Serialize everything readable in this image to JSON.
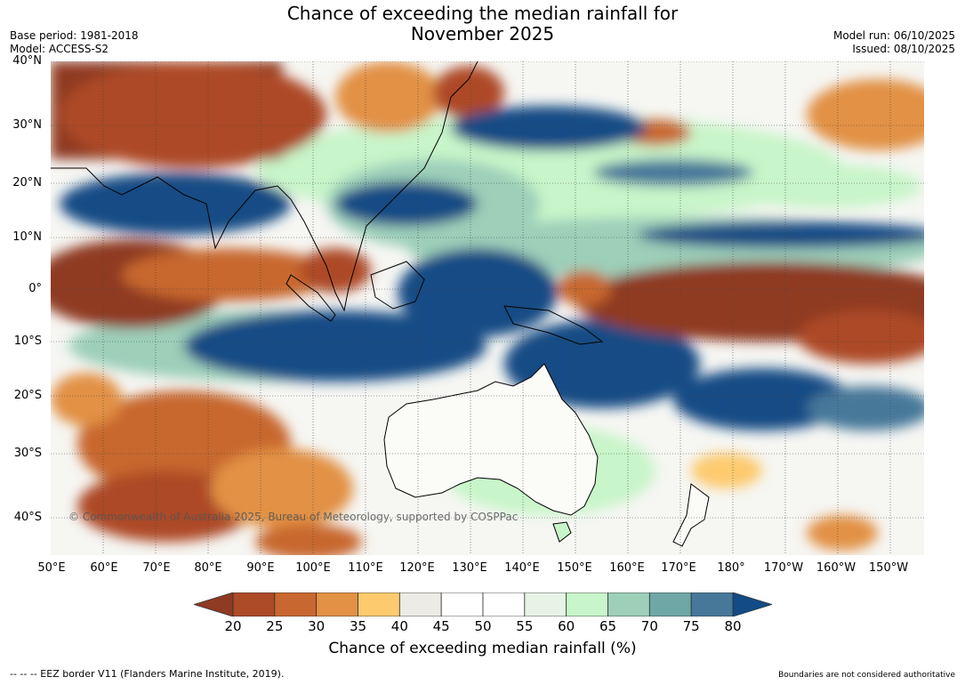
{
  "header": {
    "title_line1": "Chance of exceeding the median rainfall for",
    "title_line2": "November 2025",
    "base_period": "Base period: 1981-2018",
    "model": "Model: ACCESS-S2",
    "model_run": "Model run: 06/10/2025",
    "issued": "Issued: 08/10/2025"
  },
  "map": {
    "lat_labels": [
      "40°N",
      "30°N",
      "20°N",
      "10°N",
      "0°",
      "10°S",
      "20°S",
      "30°S",
      "40°S"
    ],
    "lon_labels": [
      "50°E",
      "60°E",
      "70°E",
      "80°E",
      "90°E",
      "100°E",
      "110°E",
      "120°E",
      "130°E",
      "140°E",
      "150°E",
      "160°E",
      "170°E",
      "180°",
      "170°W",
      "160°W",
      "150°W"
    ],
    "copyright": "© Commonwealth of Australia 2025, Bureau of Meteorology, supported by COSPPac"
  },
  "legend": {
    "ticks": [
      "20",
      "25",
      "30",
      "35",
      "40",
      "45",
      "50",
      "55",
      "60",
      "65",
      "70",
      "75",
      "80"
    ],
    "colors": [
      "#8f3a22",
      "#ad4a28",
      "#c8672f",
      "#e29145",
      "#fdca6e",
      "#ecebe5",
      "#ffffff",
      "#ffffff",
      "#e6f3e6",
      "#c8f5c9",
      "#9dcfb9",
      "#6fa7a6",
      "#47789a",
      "#124b85"
    ],
    "title": "Chance of exceeding median rainfall (%)"
  },
  "footer": {
    "eez_note": "--  --  -- EEZ border V11 (Flanders Marine Institute, 2019).",
    "boundaries_note": "Boundaries are not considered authoritative"
  }
}
